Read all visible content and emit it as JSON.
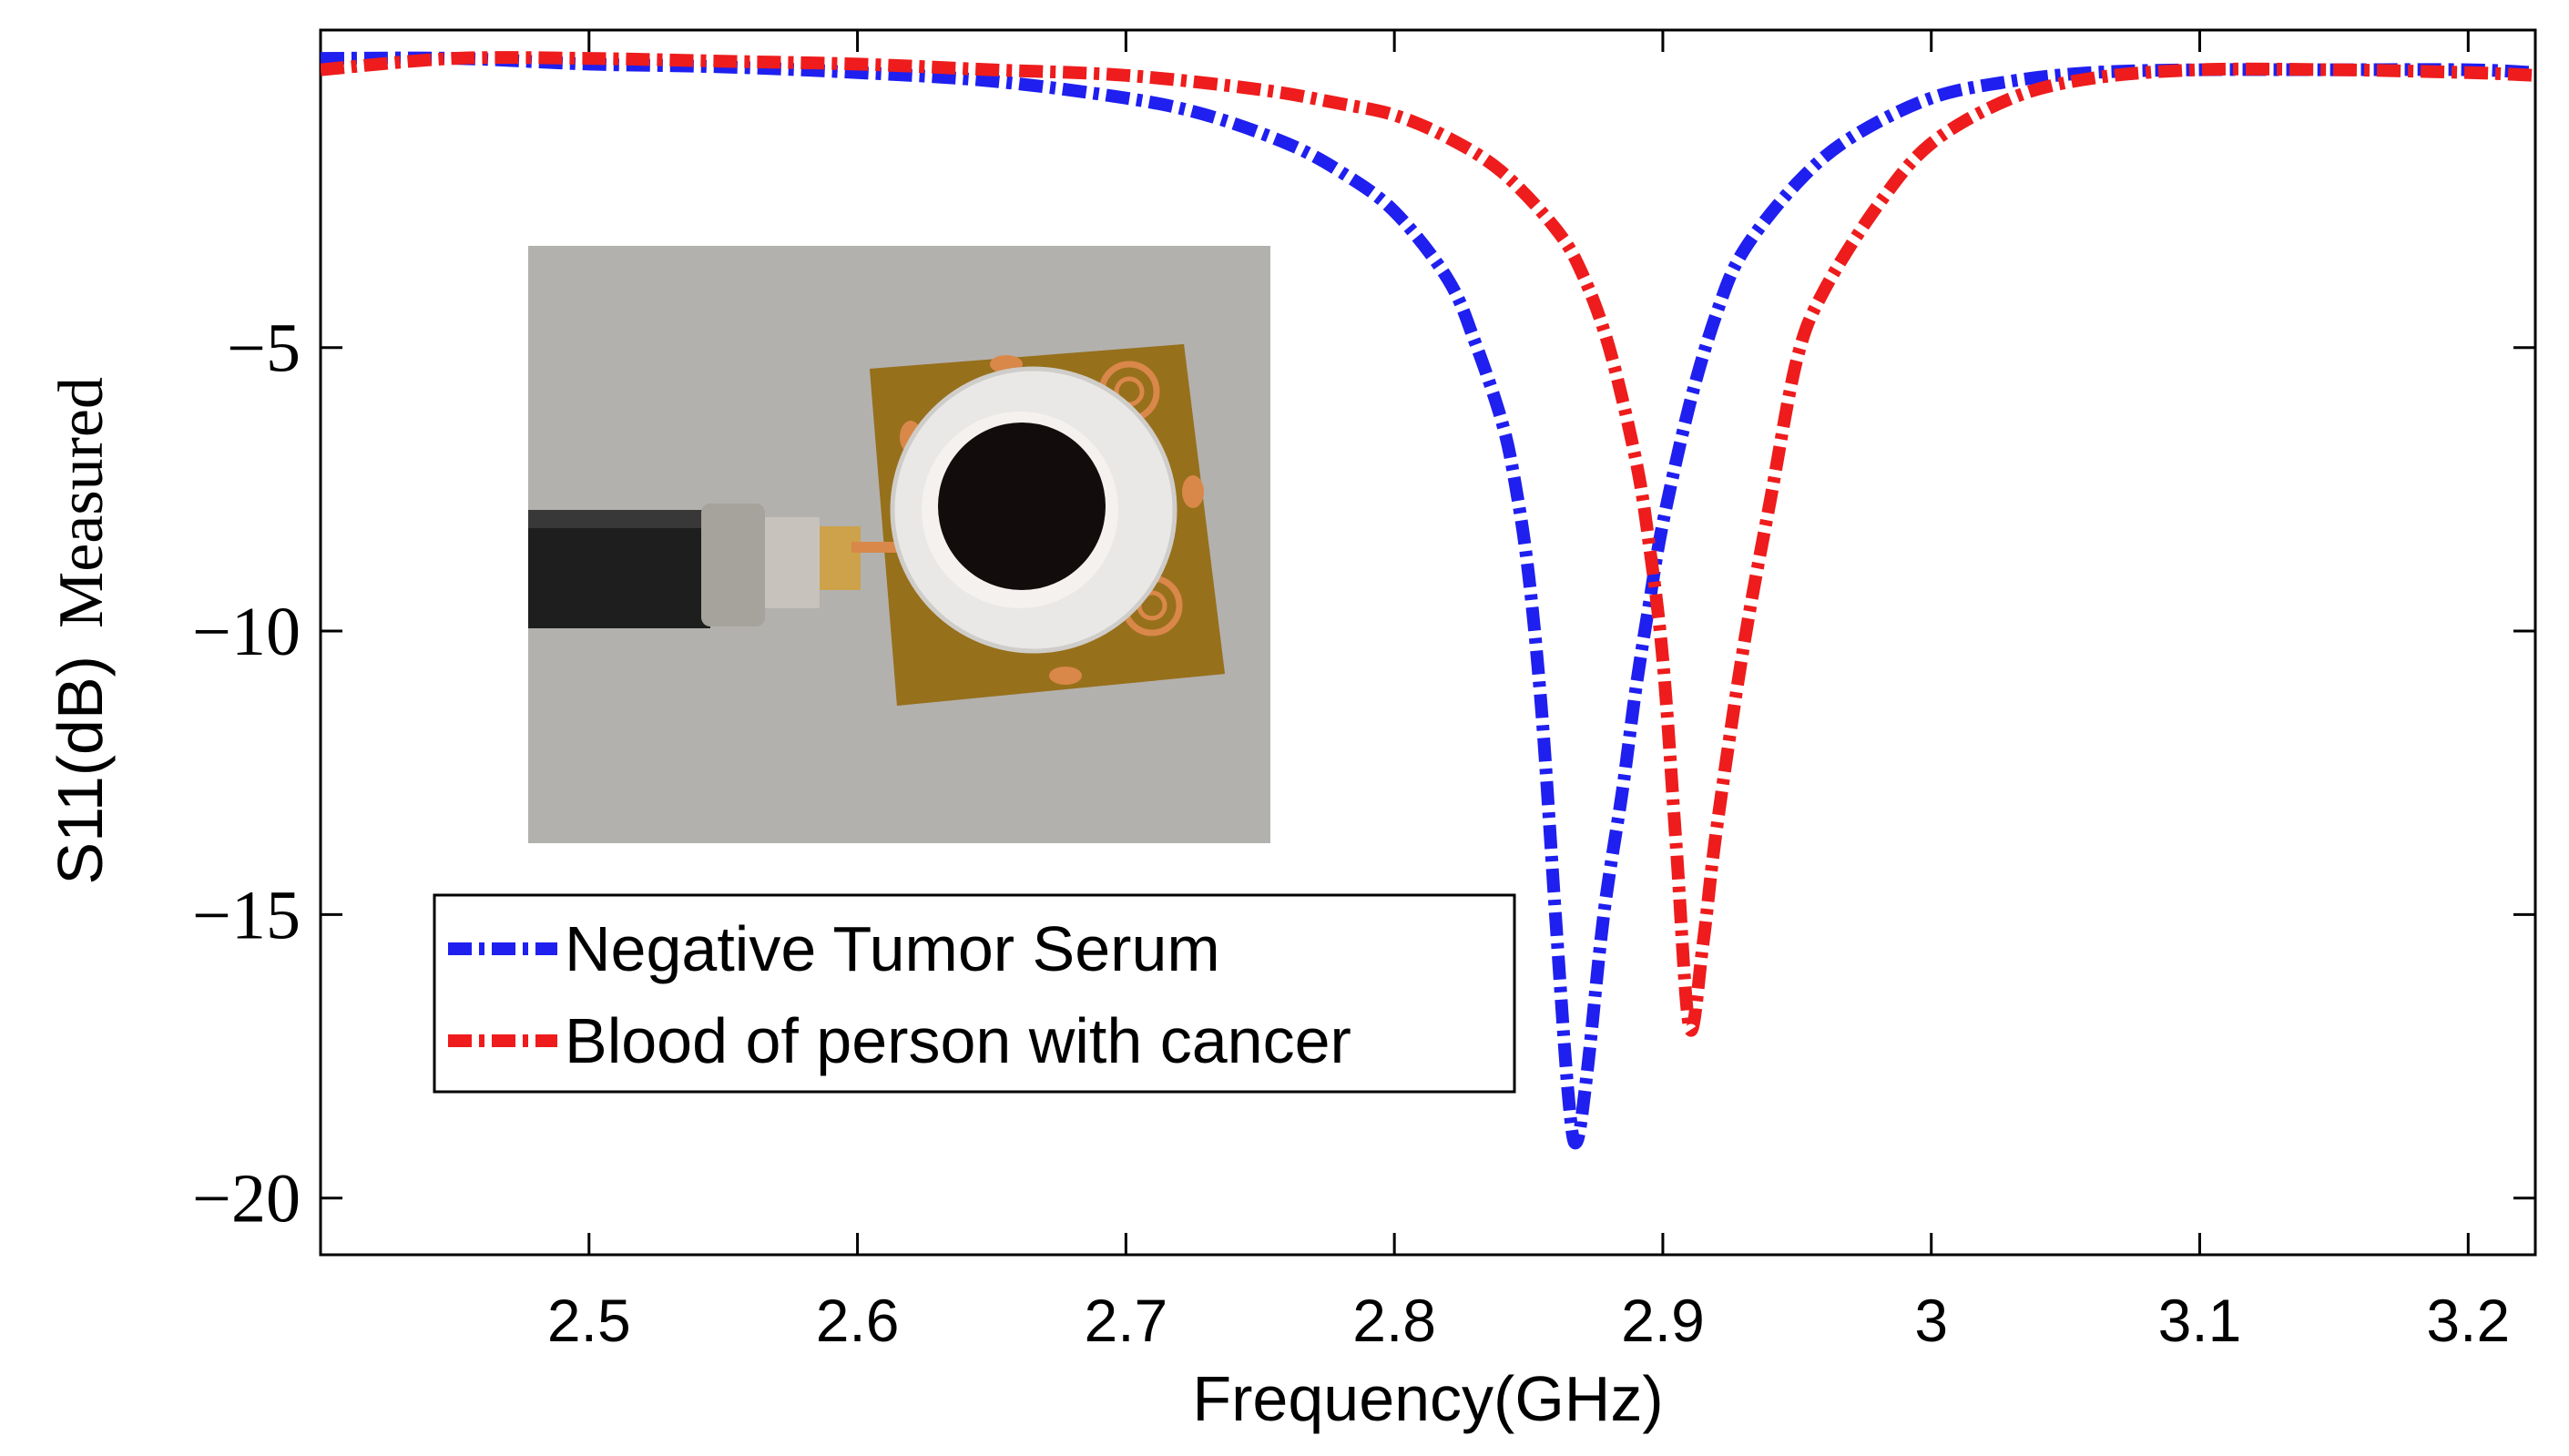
{
  "chart_data": {
    "type": "line",
    "title": "",
    "xlabel": "Frequency(GHz)",
    "ylabel_left": "S11(dB)",
    "ylabel_right": "Measured",
    "xlim": [
      2.4,
      3.225
    ],
    "ylim": [
      -21,
      0.6
    ],
    "xticks": [
      2.5,
      2.6,
      2.7,
      2.8,
      2.9,
      3.0,
      3.1,
      3.2
    ],
    "xtick_labels": [
      "2.5",
      "2.6",
      "2.7",
      "2.8",
      "2.9",
      "3",
      "3.1",
      "3.2"
    ],
    "yticks": [
      -5,
      -10,
      -15,
      -20
    ],
    "ytick_labels": [
      "−5",
      "−10",
      "−15",
      "−20"
    ],
    "grid": false,
    "legend_position": "lower-left",
    "series": [
      {
        "name": "Negative Tumor Serum",
        "color": "#1f1ff0",
        "style": "dash-dot",
        "x": [
          2.4,
          2.45,
          2.5,
          2.55,
          2.6,
          2.65,
          2.7,
          2.73,
          2.76,
          2.78,
          2.8,
          2.82,
          2.83,
          2.84,
          2.845,
          2.85,
          2.855,
          2.86,
          2.865,
          2.868,
          2.872,
          2.878,
          2.885,
          2.89,
          2.895,
          2.9,
          2.91,
          2.92,
          2.93,
          2.95,
          2.97,
          3.0,
          3.03,
          3.06,
          3.1,
          3.15,
          3.2,
          3.225
        ],
        "y": [
          0.1,
          0.1,
          0.0,
          -0.05,
          -0.15,
          -0.3,
          -0.6,
          -0.9,
          -1.4,
          -1.9,
          -2.6,
          -3.8,
          -4.9,
          -6.3,
          -7.4,
          -9.0,
          -11.5,
          -15.0,
          -18.3,
          -19.0,
          -17.7,
          -15.0,
          -12.8,
          -11.0,
          -9.5,
          -8.1,
          -6.0,
          -4.4,
          -3.3,
          -2.1,
          -1.3,
          -0.6,
          -0.3,
          -0.15,
          -0.1,
          -0.1,
          -0.1,
          -0.15
        ]
      },
      {
        "name": "Blood of person with cancer",
        "color": "#ee1c1c",
        "style": "dash-dot",
        "x": [
          2.4,
          2.45,
          2.5,
          2.55,
          2.6,
          2.65,
          2.7,
          2.75,
          2.78,
          2.8,
          2.82,
          2.84,
          2.86,
          2.87,
          2.88,
          2.89,
          2.895,
          2.9,
          2.905,
          2.91,
          2.915,
          2.92,
          2.93,
          2.94,
          2.95,
          2.96,
          2.98,
          3.0,
          3.03,
          3.06,
          3.1,
          3.15,
          3.2,
          3.225
        ],
        "y": [
          -0.1,
          0.1,
          0.1,
          0.05,
          0.0,
          -0.1,
          -0.2,
          -0.45,
          -0.7,
          -0.9,
          -1.3,
          -1.9,
          -2.9,
          -3.7,
          -5.0,
          -7.0,
          -8.5,
          -10.5,
          -13.8,
          -17.0,
          -15.5,
          -13.5,
          -10.3,
          -7.7,
          -5.2,
          -4.0,
          -2.5,
          -1.4,
          -0.6,
          -0.25,
          -0.1,
          -0.1,
          -0.15,
          -0.2
        ]
      }
    ],
    "inset_photo": "antenna-sensor-photo"
  }
}
